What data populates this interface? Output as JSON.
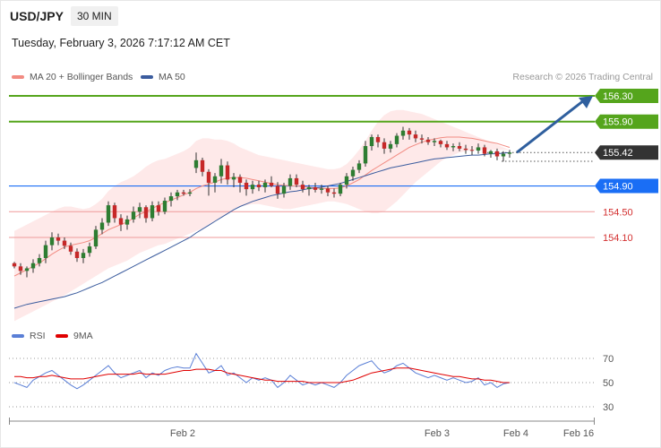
{
  "header": {
    "symbol": "USD/JPY",
    "timeframe": "30 MIN",
    "datetime": "Tuesday, February 3, 2026 7:17:12 AM CET"
  },
  "legend": {
    "ma20_label": "MA 20 + Bollinger Bands",
    "ma20_color": "#f28b82",
    "ma50_label": "MA 50",
    "ma50_color": "#3b5c9e",
    "credit": "Research © 2026 Trading Central"
  },
  "rsi_legend": {
    "rsi_label": "RSI",
    "rsi_color": "#5a7fd6",
    "ma_label": "9MA",
    "ma_color": "#e00000"
  },
  "chart_data": [
    {
      "type": "candlestick",
      "levels": [
        {
          "value": 156.3,
          "label": "156.30",
          "color": "#55a51c",
          "style": "resistance-tag"
        },
        {
          "value": 155.9,
          "label": "155.90",
          "color": "#55a51c",
          "style": "resistance-tag"
        },
        {
          "value": 155.42,
          "label": "155.42",
          "color": "#333333",
          "style": "last-price-tag"
        },
        {
          "value": 154.9,
          "label": "154.90",
          "color": "#1a6ef5",
          "style": "pivot-tag"
        },
        {
          "value": 154.5,
          "label": "154.50",
          "color": "#d32f2f",
          "style": "support-text"
        },
        {
          "value": 154.1,
          "label": "154.10",
          "color": "#d32f2f",
          "style": "support-text"
        }
      ],
      "projection": {
        "from": 155.42,
        "to": 156.3,
        "color": "#2f5f9e"
      },
      "ohlc": [
        [
          153.7,
          153.72,
          153.62,
          153.65
        ],
        [
          153.65,
          153.7,
          153.52,
          153.58
        ],
        [
          153.58,
          153.65,
          153.48,
          153.62
        ],
        [
          153.62,
          153.76,
          153.55,
          153.7
        ],
        [
          153.7,
          153.84,
          153.65,
          153.78
        ],
        [
          153.78,
          154.05,
          153.7,
          153.98
        ],
        [
          153.98,
          154.18,
          153.9,
          154.1
        ],
        [
          154.1,
          154.16,
          153.98,
          154.05
        ],
        [
          154.05,
          154.1,
          153.92,
          153.97
        ],
        [
          153.97,
          154.02,
          153.83,
          153.88
        ],
        [
          153.88,
          153.93,
          153.72,
          153.78
        ],
        [
          153.78,
          153.92,
          153.7,
          153.86
        ],
        [
          153.86,
          154.02,
          153.8,
          153.96
        ],
        [
          153.96,
          154.28,
          153.92,
          154.22
        ],
        [
          154.22,
          154.4,
          154.15,
          154.33
        ],
        [
          154.33,
          154.66,
          154.28,
          154.6
        ],
        [
          154.6,
          154.64,
          154.33,
          154.4
        ],
        [
          154.4,
          154.46,
          154.2,
          154.3
        ],
        [
          154.3,
          154.44,
          154.22,
          154.38
        ],
        [
          154.38,
          154.58,
          154.33,
          154.5
        ],
        [
          154.5,
          154.64,
          154.4,
          154.57
        ],
        [
          154.57,
          154.6,
          154.33,
          154.4
        ],
        [
          154.4,
          154.66,
          154.35,
          154.6
        ],
        [
          154.6,
          154.66,
          154.44,
          154.5
        ],
        [
          154.5,
          154.72,
          154.46,
          154.67
        ],
        [
          154.67,
          154.8,
          154.58,
          154.74
        ],
        [
          154.74,
          154.84,
          154.68,
          154.8
        ],
        [
          154.8,
          154.84,
          154.75,
          154.78
        ],
        [
          154.78,
          154.85,
          154.74,
          154.8
        ],
        [
          155.18,
          155.42,
          155.1,
          155.3
        ],
        [
          155.3,
          155.34,
          155.05,
          155.12
        ],
        [
          155.12,
          155.16,
          154.75,
          154.95
        ],
        [
          154.95,
          155.1,
          154.8,
          155.05
        ],
        [
          155.05,
          155.32,
          154.94,
          155.22
        ],
        [
          155.22,
          155.28,
          154.92,
          155.0
        ],
        [
          155.0,
          155.1,
          154.88,
          155.04
        ],
        [
          155.04,
          155.08,
          154.8,
          154.95
        ],
        [
          154.95,
          155.0,
          154.75,
          154.85
        ],
        [
          154.85,
          154.98,
          154.78,
          154.92
        ],
        [
          154.92,
          154.98,
          154.82,
          154.88
        ],
        [
          154.88,
          155.0,
          154.8,
          154.95
        ],
        [
          154.95,
          155.05,
          154.88,
          154.9
        ],
        [
          154.9,
          154.96,
          154.7,
          154.78
        ],
        [
          154.78,
          154.95,
          154.72,
          154.9
        ],
        [
          154.9,
          155.08,
          154.84,
          155.02
        ],
        [
          155.02,
          155.08,
          154.88,
          154.92
        ],
        [
          154.92,
          154.98,
          154.8,
          154.85
        ],
        [
          154.85,
          154.92,
          154.75,
          154.88
        ],
        [
          154.88,
          154.95,
          154.8,
          154.84
        ],
        [
          154.84,
          154.92,
          154.78,
          154.86
        ],
        [
          154.86,
          154.9,
          154.74,
          154.8
        ],
        [
          154.8,
          154.86,
          154.72,
          154.78
        ],
        [
          154.78,
          154.95,
          154.74,
          154.92
        ],
        [
          154.92,
          155.1,
          154.86,
          155.05
        ],
        [
          155.05,
          155.2,
          154.98,
          155.15
        ],
        [
          155.15,
          155.3,
          155.1,
          155.25
        ],
        [
          155.25,
          155.6,
          155.2,
          155.52
        ],
        [
          155.52,
          155.7,
          155.45,
          155.66
        ],
        [
          155.66,
          155.7,
          155.5,
          155.58
        ],
        [
          155.58,
          155.64,
          155.4,
          155.48
        ],
        [
          155.48,
          155.6,
          155.42,
          155.55
        ],
        [
          155.55,
          155.72,
          155.5,
          155.68
        ],
        [
          155.68,
          155.82,
          155.62,
          155.76
        ],
        [
          155.76,
          155.8,
          155.62,
          155.7
        ],
        [
          155.7,
          155.76,
          155.58,
          155.64
        ],
        [
          155.64,
          155.7,
          155.56,
          155.62
        ],
        [
          155.62,
          155.66,
          155.54,
          155.58
        ],
        [
          155.58,
          155.64,
          155.52,
          155.6
        ],
        [
          155.6,
          155.62,
          155.5,
          155.55
        ],
        [
          155.55,
          155.6,
          155.46,
          155.5
        ],
        [
          155.5,
          155.56,
          155.44,
          155.52
        ],
        [
          155.52,
          155.58,
          155.44,
          155.48
        ],
        [
          155.48,
          155.54,
          155.4,
          155.46
        ],
        [
          155.46,
          155.52,
          155.38,
          155.45
        ],
        [
          155.45,
          155.56,
          155.4,
          155.5
        ],
        [
          155.5,
          155.54,
          155.36,
          155.4
        ],
        [
          155.4,
          155.46,
          155.34,
          155.44
        ],
        [
          155.44,
          155.48,
          155.3,
          155.36
        ],
        [
          155.36,
          155.44,
          155.28,
          155.4
        ],
        [
          155.4,
          155.46,
          155.34,
          155.42
        ]
      ],
      "ma20": [
        153.5,
        153.55,
        153.6,
        153.65,
        153.7,
        153.77,
        153.84,
        153.9,
        153.95,
        153.98,
        154.0,
        154.02,
        154.05,
        154.1,
        154.16,
        154.22,
        154.26,
        154.3,
        154.34,
        154.4,
        154.46,
        154.5,
        154.55,
        154.6,
        154.64,
        154.68,
        154.72,
        154.76,
        154.8,
        154.86,
        154.9,
        154.93,
        154.96,
        155.0,
        155.02,
        155.03,
        155.03,
        155.02,
        155.0,
        154.98,
        154.96,
        154.94,
        154.92,
        154.91,
        154.9,
        154.9,
        154.89,
        154.88,
        154.87,
        154.86,
        154.86,
        154.86,
        154.87,
        154.9,
        154.95,
        155.0,
        155.07,
        155.14,
        155.2,
        155.26,
        155.32,
        155.38,
        155.44,
        155.5,
        155.54,
        155.58,
        155.61,
        155.63,
        155.65,
        155.66,
        155.66,
        155.66,
        155.65,
        155.64,
        155.62,
        155.6,
        155.58,
        155.56,
        155.53,
        155.5
      ],
      "bb_upper": [
        154.2,
        154.25,
        154.3,
        154.35,
        154.4,
        154.45,
        154.5,
        154.55,
        154.58,
        154.58,
        154.56,
        154.54,
        154.56,
        154.62,
        154.7,
        154.82,
        154.9,
        154.96,
        155.0,
        155.05,
        155.12,
        155.2,
        155.26,
        155.3,
        155.32,
        155.36,
        155.4,
        155.44,
        155.5,
        155.6,
        155.64,
        155.64,
        155.62,
        155.62,
        155.6,
        155.56,
        155.5,
        155.46,
        155.42,
        155.38,
        155.36,
        155.34,
        155.32,
        155.3,
        155.28,
        155.26,
        155.24,
        155.22,
        155.2,
        155.18,
        155.16,
        155.16,
        155.18,
        155.24,
        155.34,
        155.46,
        155.6,
        155.76,
        155.9,
        156.0,
        156.06,
        156.08,
        156.08,
        156.06,
        156.04,
        156.02,
        155.98,
        155.94,
        155.9,
        155.86,
        155.82,
        155.78,
        155.74,
        155.7,
        155.66,
        155.62,
        155.58,
        155.54,
        155.5,
        155.46
      ],
      "bb_lower": [
        152.8,
        152.85,
        152.9,
        152.95,
        153.0,
        153.05,
        153.1,
        153.15,
        153.2,
        153.26,
        153.32,
        153.38,
        153.44,
        153.5,
        153.56,
        153.62,
        153.66,
        153.7,
        153.74,
        153.8,
        153.86,
        153.9,
        153.94,
        153.98,
        154.0,
        154.04,
        154.08,
        154.12,
        154.16,
        154.2,
        154.24,
        154.3,
        154.36,
        154.42,
        154.48,
        154.54,
        154.58,
        154.6,
        154.62,
        154.62,
        154.6,
        154.58,
        154.56,
        154.54,
        154.54,
        154.56,
        154.58,
        154.6,
        154.62,
        154.64,
        154.66,
        154.66,
        154.64,
        154.62,
        154.58,
        154.54,
        154.5,
        154.48,
        154.48,
        154.5,
        154.58,
        154.66,
        154.76,
        154.86,
        154.96,
        155.04,
        155.12,
        155.2,
        155.28,
        155.34,
        155.38,
        155.42,
        155.44,
        155.46,
        155.46,
        155.46,
        155.46,
        155.46,
        155.46,
        155.46
      ],
      "ma50": [
        153.0,
        153.03,
        153.06,
        153.08,
        153.1,
        153.12,
        153.14,
        153.16,
        153.18,
        153.21,
        153.24,
        153.28,
        153.32,
        153.36,
        153.4,
        153.45,
        153.5,
        153.55,
        153.6,
        153.65,
        153.7,
        153.75,
        153.8,
        153.85,
        153.9,
        153.95,
        154.0,
        154.05,
        154.1,
        154.17,
        154.23,
        154.29,
        154.35,
        154.41,
        154.47,
        154.53,
        154.58,
        154.62,
        154.66,
        154.69,
        154.72,
        154.75,
        154.77,
        154.79,
        154.81,
        154.82,
        154.84,
        154.86,
        154.87,
        154.88,
        154.9,
        154.92,
        154.94,
        154.97,
        155.0,
        155.03,
        155.06,
        155.09,
        155.12,
        155.15,
        155.18,
        155.2,
        155.22,
        155.24,
        155.26,
        155.28,
        155.3,
        155.32,
        155.33,
        155.34,
        155.35,
        155.36,
        155.37,
        155.38,
        155.38,
        155.39,
        155.4,
        155.4,
        155.41,
        155.42
      ]
    },
    {
      "type": "line",
      "yticks": [
        "70",
        "50",
        "30"
      ],
      "ylim": [
        20,
        80
      ],
      "rsi": [
        50,
        48,
        46,
        52,
        55,
        58,
        60,
        56,
        52,
        48,
        45,
        48,
        52,
        56,
        60,
        64,
        58,
        54,
        56,
        58,
        60,
        54,
        58,
        56,
        60,
        62,
        63,
        62,
        62,
        74,
        66,
        58,
        60,
        64,
        56,
        58,
        54,
        50,
        54,
        52,
        54,
        52,
        46,
        50,
        56,
        52,
        48,
        50,
        48,
        50,
        48,
        46,
        50,
        56,
        60,
        64,
        66,
        68,
        62,
        58,
        60,
        64,
        66,
        62,
        58,
        56,
        54,
        56,
        54,
        52,
        54,
        52,
        50,
        51,
        54,
        48,
        50,
        46,
        49,
        50
      ],
      "ma9": [
        55,
        55,
        54,
        54,
        55,
        55,
        56,
        55,
        54,
        53,
        53,
        53,
        54,
        55,
        56,
        57,
        57,
        57,
        57,
        57,
        58,
        57,
        57,
        57,
        57,
        58,
        59,
        60,
        60,
        61,
        61,
        61,
        60,
        60,
        58,
        57,
        56,
        55,
        54,
        53,
        52,
        52,
        51,
        51,
        51,
        51,
        51,
        50,
        50,
        50,
        50,
        50,
        50,
        51,
        52,
        54,
        56,
        58,
        59,
        60,
        61,
        62,
        62,
        62,
        61,
        60,
        59,
        58,
        57,
        56,
        55,
        55,
        54,
        53,
        53,
        52,
        52,
        51,
        50,
        50
      ]
    }
  ],
  "xaxis": {
    "labels": [
      "Feb 2",
      "Feb 3",
      "Feb 4",
      "Feb 16"
    ]
  }
}
